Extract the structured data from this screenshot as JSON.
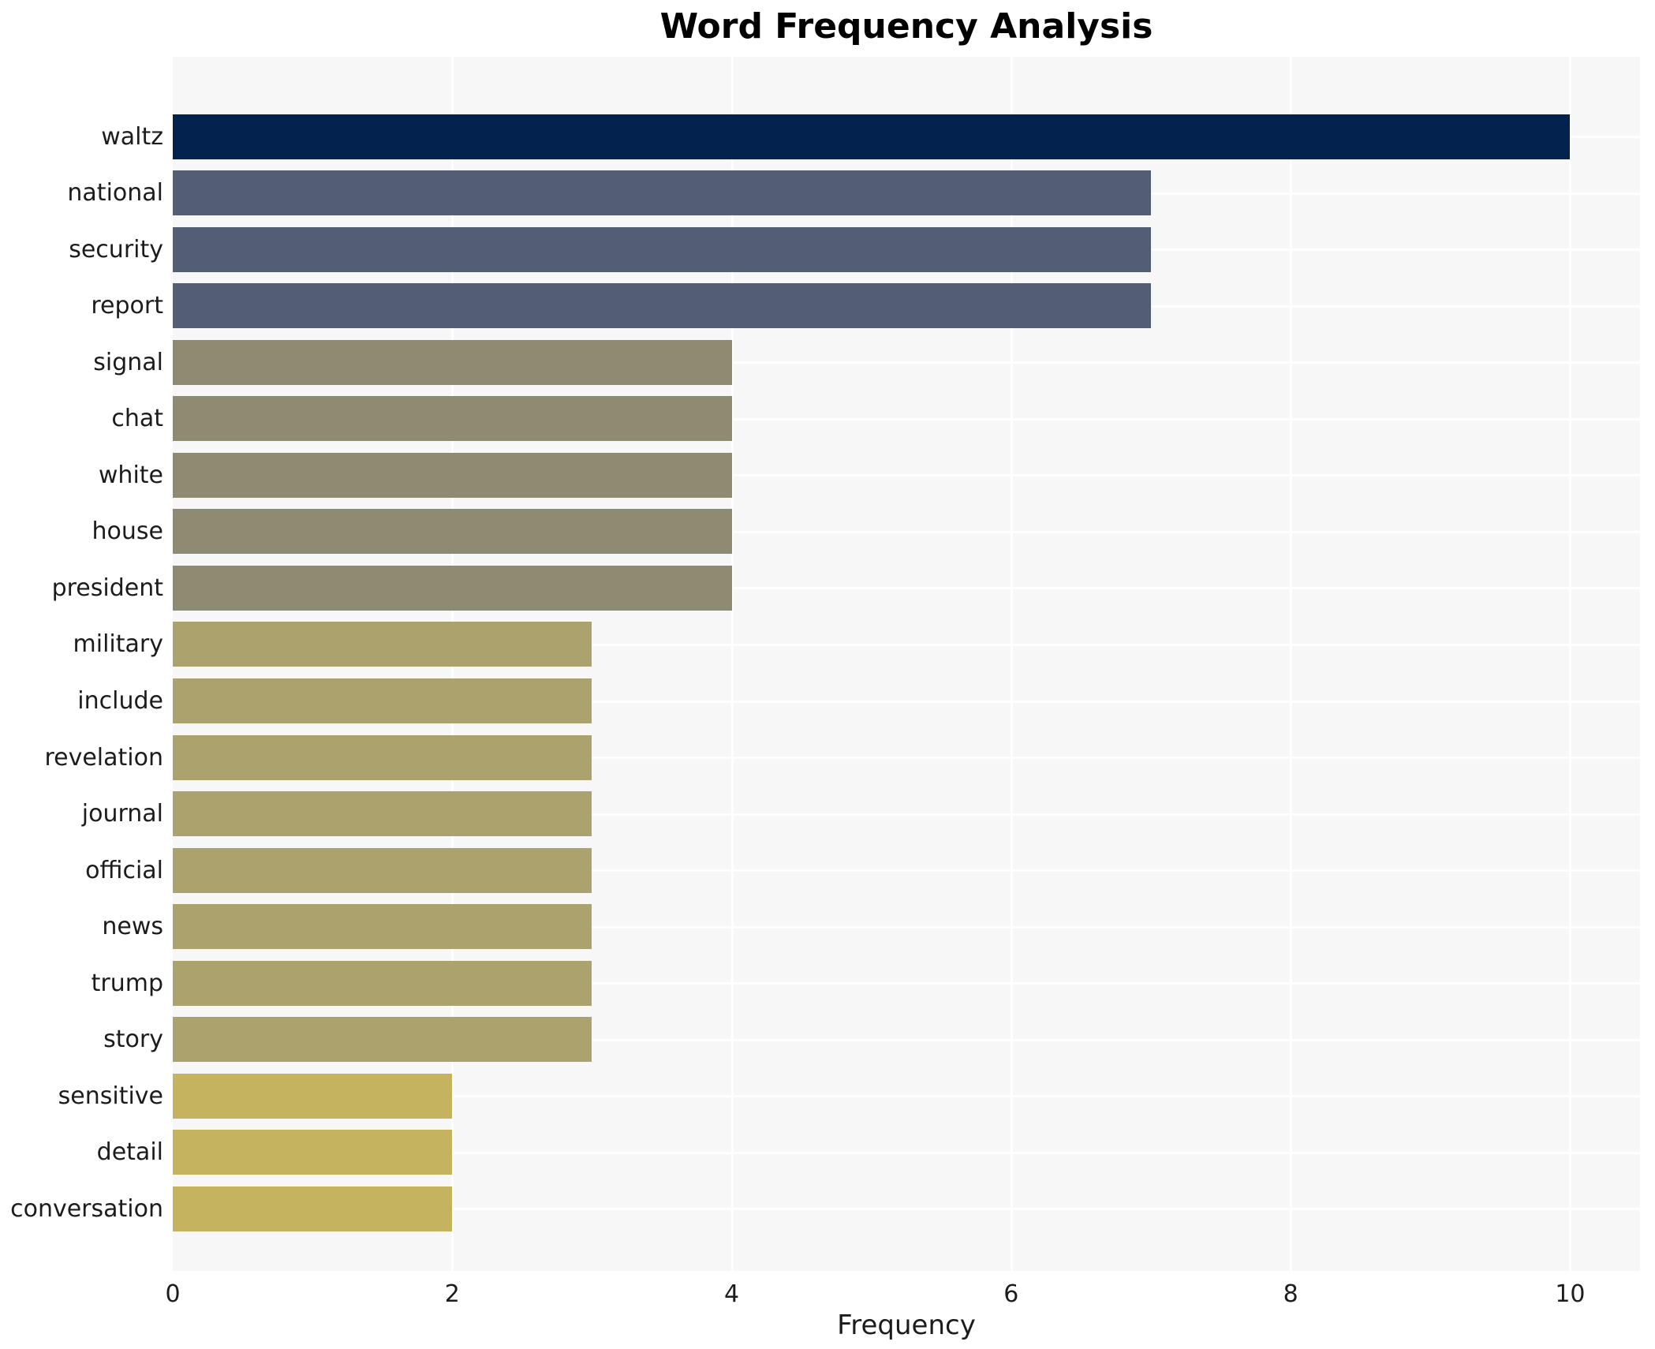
{
  "chart_data": {
    "type": "bar",
    "orientation": "horizontal",
    "title": "Word Frequency Analysis",
    "xlabel": "Frequency",
    "ylabel": "",
    "categories": [
      "waltz",
      "national",
      "security",
      "report",
      "signal",
      "chat",
      "white",
      "house",
      "president",
      "military",
      "include",
      "revelation",
      "journal",
      "official",
      "news",
      "trump",
      "story",
      "sensitive",
      "detail",
      "conversation"
    ],
    "values": [
      10,
      7,
      7,
      7,
      4,
      4,
      4,
      4,
      4,
      3,
      3,
      3,
      3,
      3,
      3,
      3,
      3,
      2,
      2,
      2
    ],
    "bar_colors": [
      "#03234e",
      "#535d73",
      "#535d73",
      "#535d73",
      "#8f8a72",
      "#8f8a72",
      "#8f8a72",
      "#8f8a72",
      "#8f8a72",
      "#aca26d",
      "#aca26d",
      "#aca26d",
      "#aca26d",
      "#aca26d",
      "#aca26d",
      "#aca26d",
      "#aca26d",
      "#c6b35f",
      "#c6b35f",
      "#c6b35f"
    ],
    "xticks": [
      0,
      2,
      4,
      6,
      8,
      10
    ],
    "xlim": [
      0,
      10.5
    ],
    "grid": "on",
    "legend": "none"
  },
  "style_colors": {
    "plot_background": "#f7f7f7",
    "gridline": "#ffffff",
    "text": "#1c1c1c",
    "title_text": "#000000",
    "navy_freq10": "#03234e",
    "slate_freq7": "#535d73",
    "olive_freq4": "#8f8a72",
    "khaki_freq3": "#aca26d",
    "gold_freq2": "#c6b35f"
  }
}
